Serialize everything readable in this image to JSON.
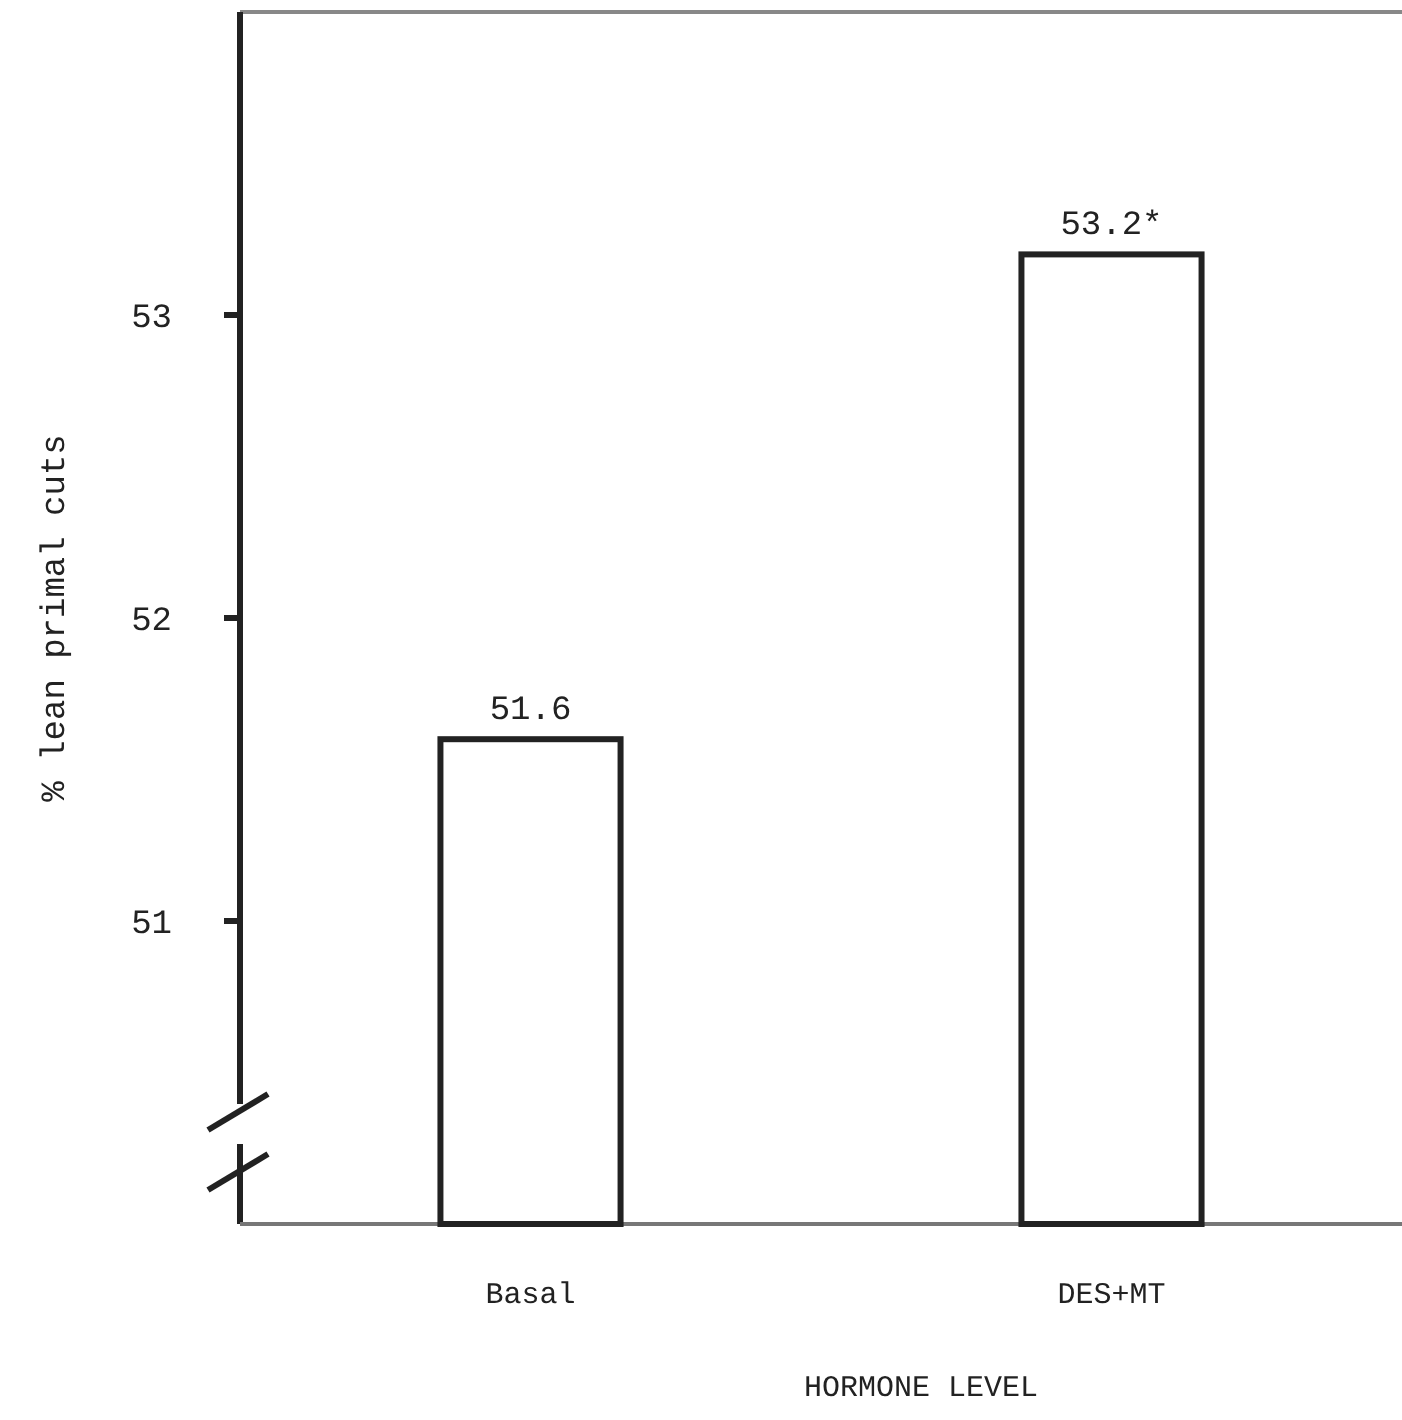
{
  "chart_data": {
    "type": "bar",
    "xlabel": "HORMONE LEVEL",
    "ylabel": "% lean primal cuts",
    "categories": [
      "Basal",
      "DES+MT"
    ],
    "values": [
      51.6,
      53.2
    ],
    "value_labels": [
      "51.6",
      "53.2*"
    ],
    "color": "#ffffff",
    "ylim": [
      50,
      54
    ],
    "yticks": [
      51,
      52,
      53
    ],
    "grid": false
  }
}
